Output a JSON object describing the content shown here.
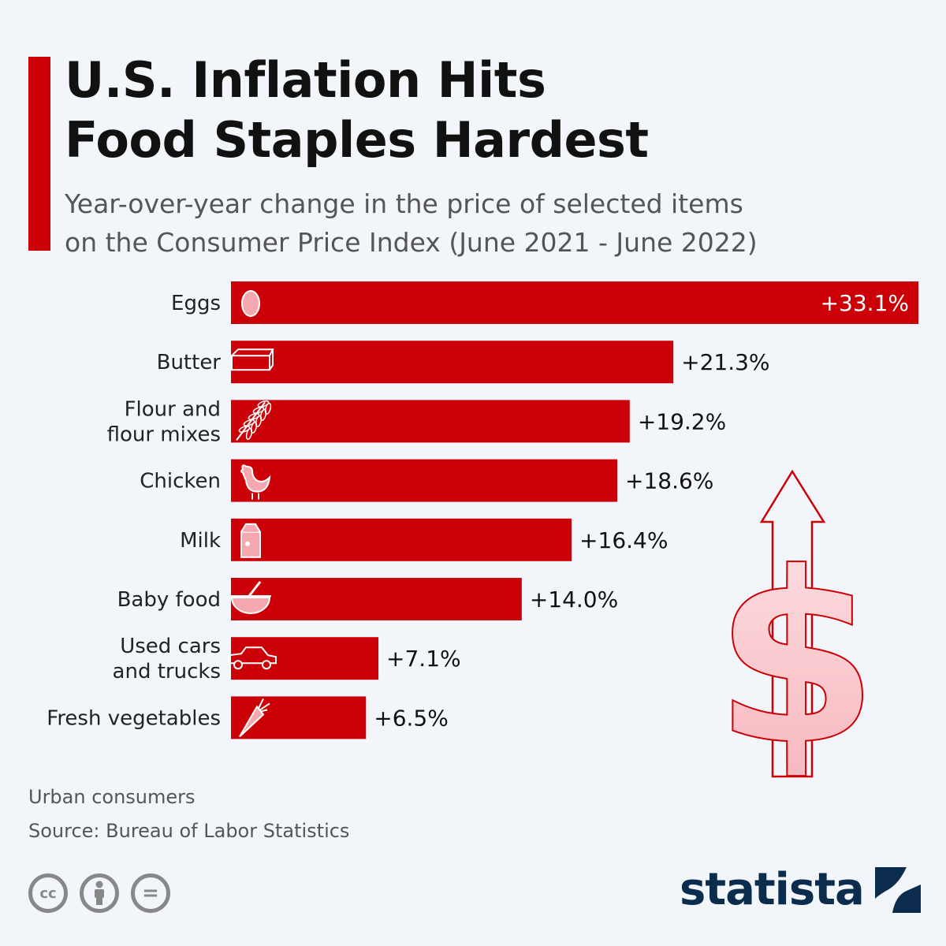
{
  "header": {
    "title": "U.S. Inflation Hits\nFood Staples Hardest",
    "subtitle": "Year-over-year change in the price of selected items\non the Consumer Price Index (June 2021 - June 2022)"
  },
  "colors": {
    "accent": "#cc0007",
    "bar": "#cc0007",
    "background": "#f2f6fa",
    "dollar_fill": "#f9c7cc",
    "brand": "#0c2c4e"
  },
  "chart_data": {
    "type": "bar",
    "orientation": "horizontal",
    "categories": [
      "Eggs",
      "Butter",
      "Flour and\nflour mixes",
      "Chicken",
      "Milk",
      "Baby food",
      "Used cars\nand trucks",
      "Fresh vegetables"
    ],
    "icons": [
      "egg-icon",
      "butter-icon",
      "wheat-icon",
      "chicken-icon",
      "milk-carton-icon",
      "bowl-icon",
      "car-icon",
      "carrot-icon"
    ],
    "values": [
      33.1,
      21.3,
      19.2,
      18.6,
      16.4,
      14.0,
      7.1,
      6.5
    ],
    "value_labels": [
      "+33.1%",
      "+21.3%",
      "+19.2%",
      "+18.6%",
      "+16.4%",
      "+14.0%",
      "+7.1%",
      "+6.5%"
    ],
    "xlim": [
      0,
      33.1
    ],
    "grid": false,
    "legend": "none",
    "decoration": "dollar-sign-with-up-arrow"
  },
  "footer": {
    "note": "Urban consumers",
    "source": "Source: Bureau of Labor Statistics",
    "license_icons": [
      "cc-icon",
      "attribution-icon",
      "no-derivatives-icon"
    ],
    "cc_text": "cc",
    "nd_text": "=",
    "brand": "statista"
  }
}
